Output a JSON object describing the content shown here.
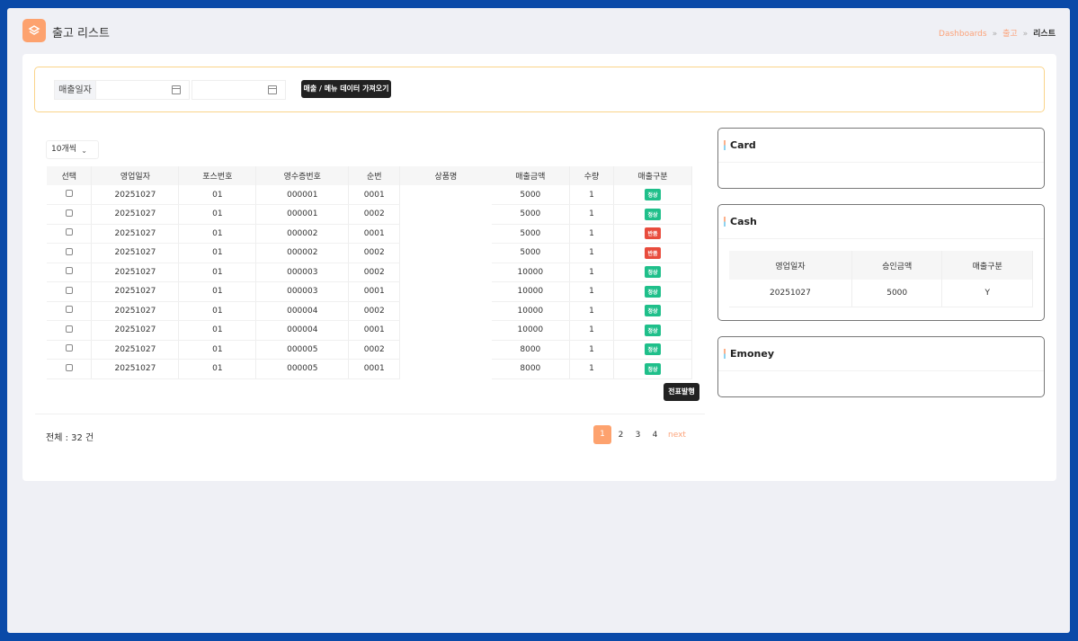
{
  "header": {
    "title": "출고 리스트",
    "breadcrumb": [
      "Dashboards",
      "출고",
      "리스트"
    ]
  },
  "filter": {
    "label": "매출일자",
    "date_from": "",
    "date_to": "",
    "fetch_button": "매출 / 메뉴 데이터 가져오기"
  },
  "page_size": "10개씩",
  "table": {
    "columns": [
      "선택",
      "영업일자",
      "포스번호",
      "영수증번호",
      "순번",
      "상품명",
      "매출금액",
      "수량",
      "매출구분"
    ],
    "rows": [
      [
        "20251027",
        "01",
        "000001",
        "0001",
        "",
        "5000",
        "1",
        "정상"
      ],
      [
        "20251027",
        "01",
        "000001",
        "0002",
        "",
        "5000",
        "1",
        "정상"
      ],
      [
        "20251027",
        "01",
        "000002",
        "0001",
        "",
        "5000",
        "1",
        "반품"
      ],
      [
        "20251027",
        "01",
        "000002",
        "0002",
        "",
        "5000",
        "1",
        "반품"
      ],
      [
        "20251027",
        "01",
        "000003",
        "0002",
        "",
        "10000",
        "1",
        "정상"
      ],
      [
        "20251027",
        "01",
        "000003",
        "0001",
        "",
        "10000",
        "1",
        "정상"
      ],
      [
        "20251027",
        "01",
        "000004",
        "0002",
        "",
        "10000",
        "1",
        "정상"
      ],
      [
        "20251027",
        "01",
        "000004",
        "0001",
        "",
        "10000",
        "1",
        "정상"
      ],
      [
        "20251027",
        "01",
        "000005",
        "0002",
        "",
        "8000",
        "1",
        "정상"
      ],
      [
        "20251027",
        "01",
        "000005",
        "0001",
        "",
        "8000",
        "1",
        "정상"
      ]
    ],
    "status_colors": {
      "정상": "#1fbf8a",
      "반품": "#e84c3d"
    }
  },
  "issue_button": "전표발행",
  "total": "전체 : 32 건",
  "pagination": {
    "pages": [
      "1",
      "2",
      "3",
      "4"
    ],
    "current": "1",
    "next": "next"
  },
  "panels": {
    "card": {
      "title": "Card"
    },
    "cash": {
      "title": "Cash",
      "columns": [
        "영업일자",
        "승인금액",
        "매출구분"
      ],
      "rows": [
        [
          "20251027",
          "5000",
          "Y"
        ]
      ]
    },
    "emoney": {
      "title": "Emoney"
    }
  },
  "colors": {
    "accent": "#fda26e",
    "frame": "#0a4aa8"
  }
}
